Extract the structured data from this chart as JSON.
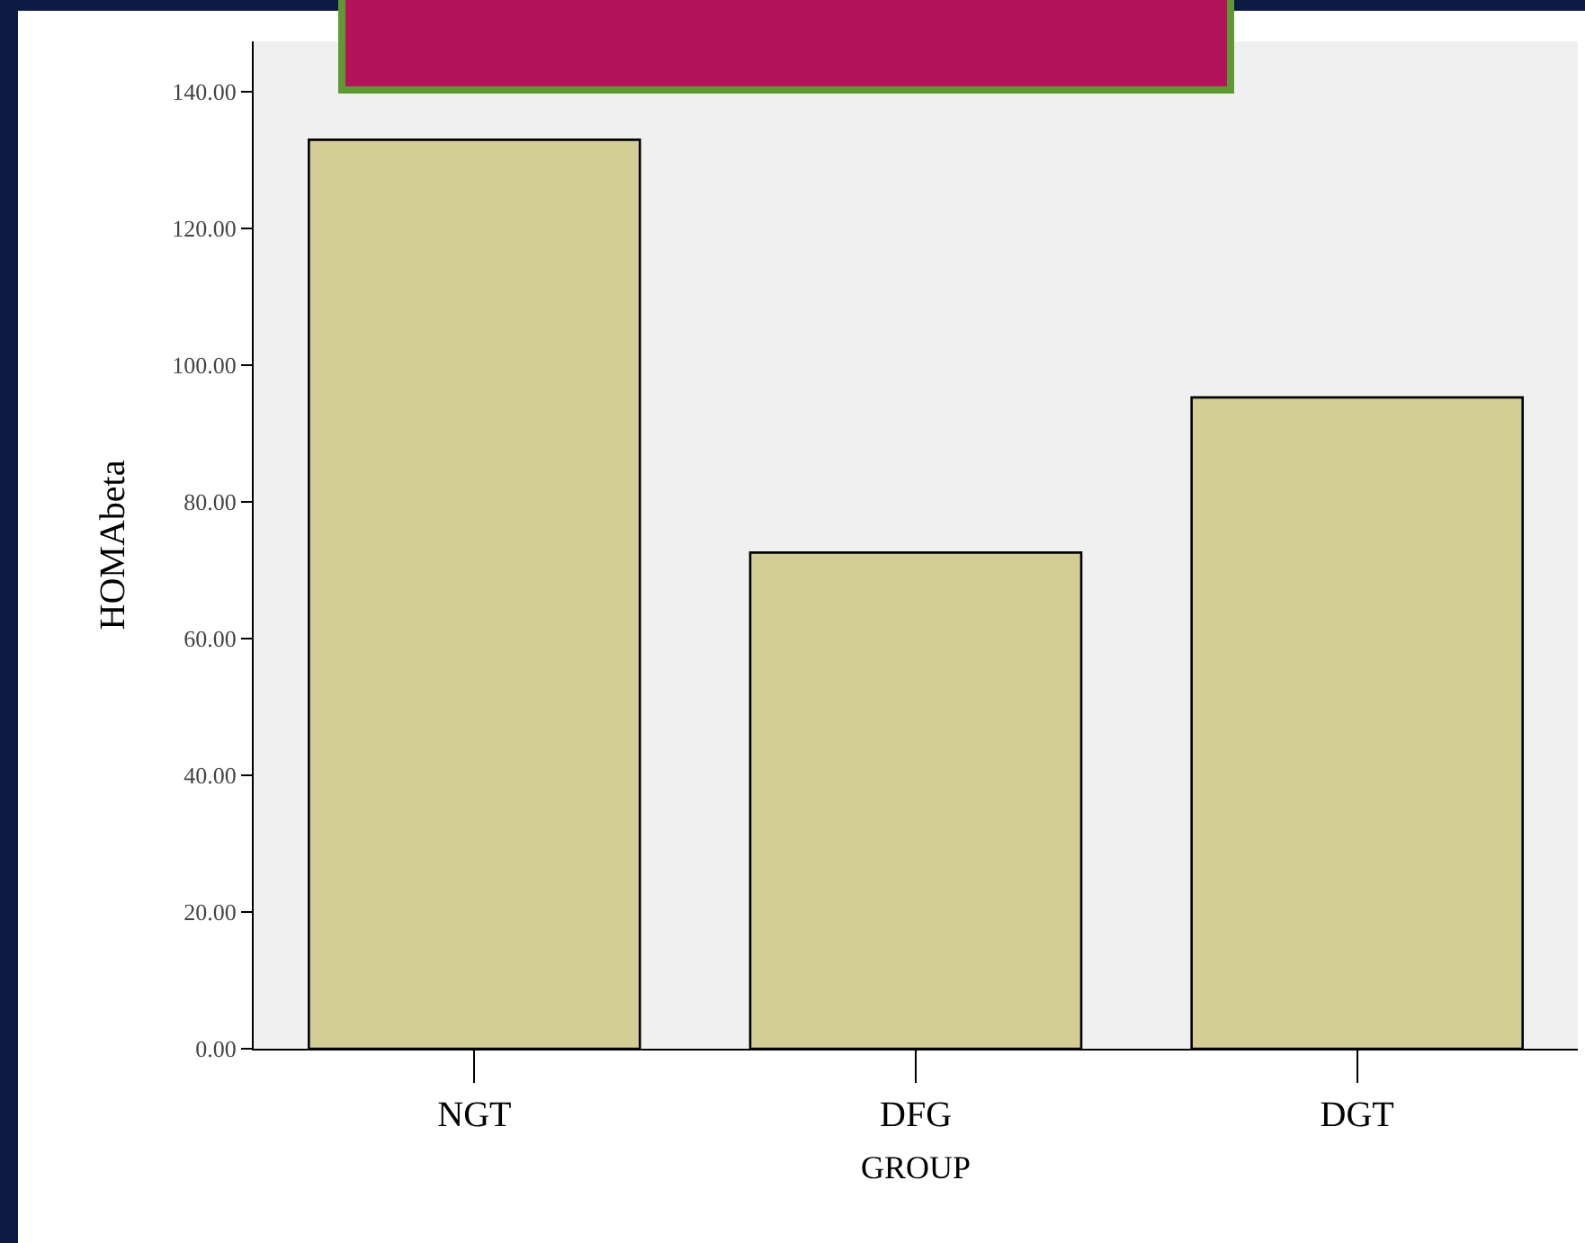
{
  "chart_data": {
    "type": "bar",
    "xlabel": "GROUP",
    "ylabel": "HOMAbeta",
    "categories": [
      "NGT",
      "DFG",
      "DGT"
    ],
    "values": [
      133,
      72.6,
      95.3
    ],
    "color": "#d3ce96",
    "ylim": [
      0,
      147.4
    ],
    "yticks": [
      {
        "value": 0,
        "label": "0.00"
      },
      {
        "value": 20,
        "label": "20.00"
      },
      {
        "value": 40,
        "label": "40.00"
      },
      {
        "value": 60,
        "label": "60.00"
      },
      {
        "value": 80,
        "label": "80.00"
      },
      {
        "value": 100,
        "label": "100.00"
      },
      {
        "value": 120,
        "label": "120.00"
      },
      {
        "value": 140,
        "label": "140.00"
      }
    ],
    "grid": false,
    "legend": false
  }
}
